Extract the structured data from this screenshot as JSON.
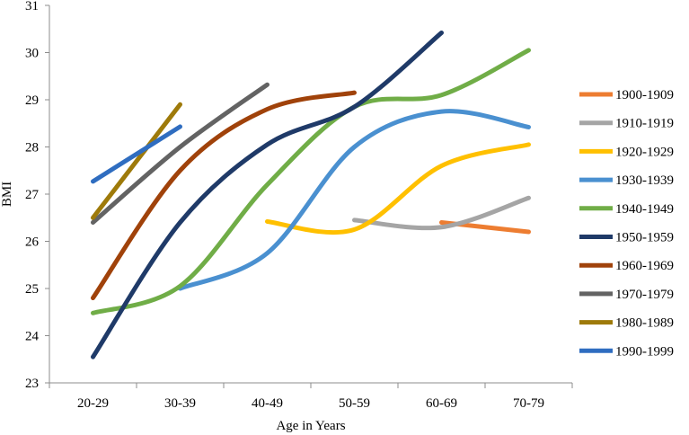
{
  "chart_data": {
    "type": "line",
    "title": "",
    "xlabel": "Age in Years",
    "ylabel": "BMI",
    "categories": [
      "20-29",
      "30-39",
      "40-49",
      "50-59",
      "60-69",
      "70-79"
    ],
    "yticks": [
      "23",
      "24",
      "25",
      "26",
      "27",
      "28",
      "29",
      "30",
      "31"
    ],
    "ylim": [
      23,
      31
    ],
    "grid": false,
    "legend_position": "right",
    "series": [
      {
        "name": "1900-1909",
        "color": "#ED7D31",
        "values": [
          null,
          null,
          null,
          null,
          26.4,
          26.2
        ]
      },
      {
        "name": "1910-1919",
        "color": "#A5A5A5",
        "values": [
          null,
          null,
          null,
          26.45,
          26.3,
          26.92
        ]
      },
      {
        "name": "1920-1929",
        "color": "#FFC000",
        "values": [
          null,
          null,
          26.42,
          26.25,
          27.6,
          28.05
        ]
      },
      {
        "name": "1930-1939",
        "color": "#4A90D0",
        "values": [
          null,
          25.0,
          25.75,
          28.0,
          28.75,
          28.42
        ]
      },
      {
        "name": "1940-1949",
        "color": "#70AD47",
        "values": [
          24.48,
          25.05,
          27.2,
          28.85,
          29.1,
          30.05
        ]
      },
      {
        "name": "1950-1959",
        "color": "#1F3A68",
        "values": [
          23.55,
          26.4,
          28.05,
          28.85,
          30.42,
          null
        ]
      },
      {
        "name": "1960-1969",
        "color": "#A0420A",
        "values": [
          24.8,
          27.5,
          28.8,
          29.15,
          null,
          null
        ]
      },
      {
        "name": "1970-1979",
        "color": "#636363",
        "values": [
          26.4,
          28.0,
          29.32,
          null,
          null,
          null
        ]
      },
      {
        "name": "1980-1989",
        "color": "#9E7A0A",
        "values": [
          26.5,
          28.9,
          null,
          null,
          null,
          null
        ]
      },
      {
        "name": "1990-1999",
        "color": "#2F6DC0",
        "values": [
          27.27,
          28.43,
          null,
          null,
          null,
          null
        ]
      }
    ]
  }
}
